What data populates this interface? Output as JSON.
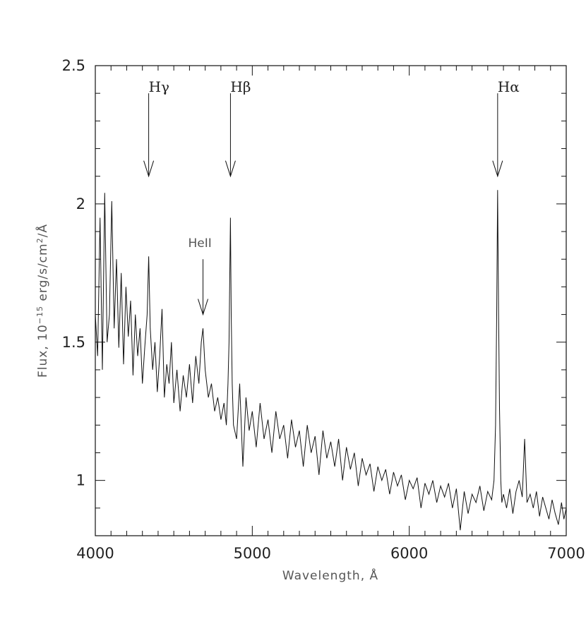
{
  "chart_data": {
    "type": "line",
    "xlabel": "Wavelength, Å",
    "ylabel_parts": [
      "Flux, 10",
      "−15",
      " erg/s/cm",
      "2",
      "/Å"
    ],
    "xlim": [
      4000,
      7000
    ],
    "ylim": [
      0.8,
      2.5
    ],
    "x_ticks": [
      "4000",
      "5000",
      "6000",
      "7000"
    ],
    "y_ticks": [
      "1",
      "1.5",
      "2",
      "2.5"
    ],
    "grid": false,
    "annotations": [
      {
        "label": "Hγ",
        "x": 4340,
        "arrow_top": 2.4,
        "arrow_tip": 2.1
      },
      {
        "label": "Hβ",
        "x": 4861,
        "arrow_top": 2.4,
        "arrow_tip": 2.1
      },
      {
        "label": "Hα",
        "x": 6563,
        "arrow_top": 2.4,
        "arrow_tip": 2.1
      },
      {
        "label": "HeII",
        "x": 4686,
        "arrow_top": 1.8,
        "arrow_tip": 1.6
      }
    ],
    "series": [
      {
        "x": [
          4000,
          4015,
          4030,
          4045,
          4060,
          4075,
          4090,
          4105,
          4120,
          4135,
          4150,
          4165,
          4180,
          4195,
          4210,
          4225,
          4240,
          4255,
          4270,
          4285,
          4300,
          4315,
          4330,
          4340,
          4350,
          4365,
          4380,
          4395,
          4410,
          4425,
          4440,
          4455,
          4470,
          4485,
          4500,
          4520,
          4540,
          4560,
          4580,
          4600,
          4620,
          4640,
          4660,
          4675,
          4686,
          4700,
          4720,
          4740,
          4760,
          4780,
          4800,
          4820,
          4835,
          4845,
          4852,
          4857,
          4861,
          4866,
          4872,
          4880,
          4900,
          4920,
          4940,
          4960,
          4980,
          5000,
          5025,
          5050,
          5075,
          5100,
          5125,
          5150,
          5175,
          5200,
          5225,
          5250,
          5275,
          5300,
          5325,
          5350,
          5375,
          5400,
          5425,
          5450,
          5475,
          5500,
          5525,
          5550,
          5575,
          5600,
          5625,
          5650,
          5675,
          5700,
          5725,
          5750,
          5775,
          5800,
          5825,
          5850,
          5875,
          5900,
          5925,
          5950,
          5975,
          6000,
          6025,
          6050,
          6075,
          6100,
          6125,
          6150,
          6175,
          6200,
          6225,
          6250,
          6275,
          6300,
          6325,
          6350,
          6375,
          6400,
          6425,
          6450,
          6475,
          6500,
          6525,
          6540,
          6550,
          6557,
          6563,
          6569,
          6575,
          6583,
          6590,
          6600,
          6620,
          6640,
          6660,
          6680,
          6700,
          6720,
          6735,
          6750,
          6770,
          6790,
          6810,
          6830,
          6850,
          6870,
          6890,
          6910,
          6930,
          6950,
          6970,
          6985,
          7000
        ],
        "values": [
          1.6,
          1.45,
          1.95,
          1.4,
          2.04,
          1.5,
          1.6,
          2.01,
          1.55,
          1.8,
          1.48,
          1.75,
          1.42,
          1.7,
          1.52,
          1.65,
          1.38,
          1.6,
          1.45,
          1.55,
          1.35,
          1.48,
          1.6,
          1.81,
          1.55,
          1.4,
          1.5,
          1.32,
          1.45,
          1.62,
          1.3,
          1.42,
          1.35,
          1.5,
          1.28,
          1.4,
          1.25,
          1.38,
          1.3,
          1.42,
          1.28,
          1.45,
          1.35,
          1.5,
          1.55,
          1.4,
          1.3,
          1.35,
          1.25,
          1.3,
          1.22,
          1.28,
          1.2,
          1.35,
          1.5,
          1.75,
          1.95,
          1.6,
          1.35,
          1.2,
          1.15,
          1.35,
          1.05,
          1.3,
          1.18,
          1.25,
          1.12,
          1.28,
          1.15,
          1.22,
          1.1,
          1.25,
          1.15,
          1.2,
          1.08,
          1.22,
          1.12,
          1.18,
          1.05,
          1.2,
          1.1,
          1.16,
          1.02,
          1.18,
          1.08,
          1.14,
          1.05,
          1.15,
          1.0,
          1.12,
          1.04,
          1.1,
          0.98,
          1.08,
          1.02,
          1.06,
          0.96,
          1.05,
          1.0,
          1.04,
          0.95,
          1.03,
          0.98,
          1.02,
          0.93,
          1.0,
          0.97,
          1.01,
          0.9,
          0.99,
          0.95,
          1.0,
          0.92,
          0.98,
          0.94,
          0.99,
          0.9,
          0.97,
          0.82,
          0.96,
          0.88,
          0.95,
          0.92,
          0.98,
          0.89,
          0.96,
          0.93,
          1.0,
          1.2,
          1.6,
          2.05,
          1.6,
          1.26,
          1.0,
          0.92,
          0.95,
          0.9,
          0.97,
          0.88,
          0.96,
          1.0,
          0.94,
          1.15,
          0.92,
          0.95,
          0.9,
          0.96,
          0.87,
          0.94,
          0.9,
          0.86,
          0.93,
          0.88,
          0.84,
          0.92,
          0.86,
          0.9
        ]
      }
    ]
  }
}
